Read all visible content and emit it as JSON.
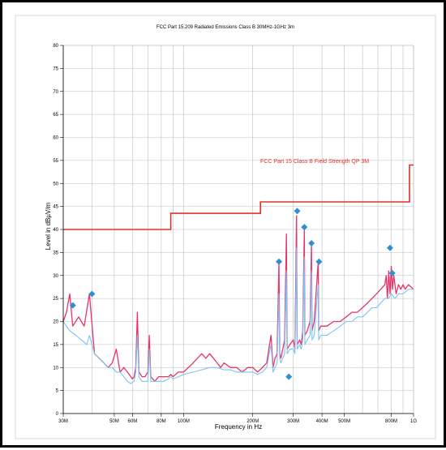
{
  "chart_data": {
    "type": "line",
    "title": "FCC Part 15.209 Radiated Emissions Class B 30MHz-1GHz 3m",
    "xlabel": "Frequency in Hz",
    "ylabel": "Level in dBµV/m",
    "x_scale": "log",
    "xlim": [
      30,
      1000
    ],
    "ylim": [
      0,
      80
    ],
    "grid": true,
    "x_ticks": [
      {
        "value": 30,
        "label": "30M"
      },
      {
        "value": 50,
        "label": "50M"
      },
      {
        "value": 60,
        "label": "60M"
      },
      {
        "value": 80,
        "label": "80M"
      },
      {
        "value": 100,
        "label": "100M"
      },
      {
        "value": 200,
        "label": "200M"
      },
      {
        "value": 300,
        "label": "300M"
      },
      {
        "value": 400,
        "label": "400M"
      },
      {
        "value": 500,
        "label": "500M"
      },
      {
        "value": 800,
        "label": "800M"
      },
      {
        "value": 1000,
        "label": "1G"
      }
    ],
    "x_minor_ticks": [
      40,
      70,
      90,
      600,
      700,
      900
    ],
    "y_ticks": [
      0,
      5,
      10,
      15,
      20,
      25,
      30,
      35,
      40,
      45,
      50,
      55,
      60,
      65,
      70,
      75,
      80
    ],
    "colors": {
      "limit": "#e03028",
      "peak": "#e8336a",
      "average": "#7cc3f2",
      "marker": "#2f8fd6",
      "grid": "#bdbdbd"
    },
    "limit_line": {
      "label": "FCC Part 15 Class B Field Strength QP 3M",
      "points": [
        [
          30,
          40
        ],
        [
          88,
          40
        ],
        [
          88,
          43.5
        ],
        [
          216,
          43.5
        ],
        [
          216,
          46
        ],
        [
          960,
          46
        ],
        [
          960,
          54
        ],
        [
          1000,
          54
        ]
      ]
    },
    "series": [
      {
        "role": "peak",
        "points": [
          [
            30,
            20
          ],
          [
            31,
            22
          ],
          [
            32,
            26
          ],
          [
            33,
            19
          ],
          [
            35,
            21
          ],
          [
            37,
            19
          ],
          [
            39,
            26
          ],
          [
            41,
            13
          ],
          [
            43,
            12
          ],
          [
            45,
            11
          ],
          [
            47,
            10
          ],
          [
            49,
            11
          ],
          [
            51,
            14
          ],
          [
            53,
            9
          ],
          [
            55,
            10
          ],
          [
            57,
            9
          ],
          [
            59,
            8
          ],
          [
            60,
            7.5
          ],
          [
            61,
            8
          ],
          [
            62,
            10
          ],
          [
            63,
            22
          ],
          [
            64,
            9
          ],
          [
            66,
            8
          ],
          [
            68,
            8
          ],
          [
            70,
            9
          ],
          [
            71,
            17
          ],
          [
            72,
            8
          ],
          [
            75,
            7
          ],
          [
            78,
            8
          ],
          [
            82,
            8
          ],
          [
            86,
            8
          ],
          [
            88,
            8.5
          ],
          [
            90,
            8
          ],
          [
            95,
            9
          ],
          [
            100,
            9
          ],
          [
            105,
            10
          ],
          [
            110,
            11
          ],
          [
            115,
            12
          ],
          [
            120,
            13
          ],
          [
            125,
            12
          ],
          [
            130,
            13
          ],
          [
            135,
            12
          ],
          [
            140,
            11
          ],
          [
            145,
            10
          ],
          [
            150,
            11
          ],
          [
            160,
            10
          ],
          [
            170,
            10
          ],
          [
            180,
            9
          ],
          [
            190,
            10
          ],
          [
            200,
            10
          ],
          [
            210,
            9
          ],
          [
            220,
            10
          ],
          [
            230,
            11
          ],
          [
            240,
            17
          ],
          [
            245,
            10
          ],
          [
            250,
            12
          ],
          [
            255,
            13
          ],
          [
            260,
            33
          ],
          [
            262,
            13
          ],
          [
            265,
            12
          ],
          [
            270,
            14
          ],
          [
            275,
            16
          ],
          [
            280,
            39
          ],
          [
            282,
            14
          ],
          [
            290,
            15
          ],
          [
            300,
            16
          ],
          [
            305,
            14
          ],
          [
            310,
            43
          ],
          [
            312,
            15
          ],
          [
            320,
            16
          ],
          [
            325,
            15
          ],
          [
            330,
            18
          ],
          [
            335,
            40
          ],
          [
            337,
            17
          ],
          [
            345,
            18
          ],
          [
            355,
            20
          ],
          [
            360,
            37
          ],
          [
            362,
            18
          ],
          [
            370,
            20
          ],
          [
            385,
            33
          ],
          [
            387,
            18
          ],
          [
            395,
            19
          ],
          [
            420,
            19
          ],
          [
            450,
            20
          ],
          [
            480,
            20
          ],
          [
            510,
            21
          ],
          [
            540,
            22
          ],
          [
            570,
            22
          ],
          [
            600,
            23
          ],
          [
            630,
            24
          ],
          [
            660,
            25
          ],
          [
            690,
            26
          ],
          [
            720,
            27
          ],
          [
            750,
            28
          ],
          [
            760,
            30
          ],
          [
            770,
            25
          ],
          [
            780,
            31
          ],
          [
            790,
            26
          ],
          [
            800,
            32
          ],
          [
            810,
            27
          ],
          [
            820,
            30
          ],
          [
            840,
            26
          ],
          [
            860,
            28
          ],
          [
            880,
            27
          ],
          [
            900,
            28
          ],
          [
            920,
            27
          ],
          [
            950,
            28
          ],
          [
            1000,
            27
          ]
        ]
      },
      {
        "role": "average",
        "points": [
          [
            30,
            20
          ],
          [
            32,
            18
          ],
          [
            34,
            17
          ],
          [
            36,
            16
          ],
          [
            38,
            15
          ],
          [
            39,
            17
          ],
          [
            41,
            13
          ],
          [
            43,
            12
          ],
          [
            45,
            11
          ],
          [
            47,
            10
          ],
          [
            49,
            10
          ],
          [
            51,
            9
          ],
          [
            53,
            9
          ],
          [
            55,
            8
          ],
          [
            57,
            7
          ],
          [
            59,
            6.5
          ],
          [
            61,
            7
          ],
          [
            62,
            9
          ],
          [
            63,
            17
          ],
          [
            64,
            8
          ],
          [
            66,
            7
          ],
          [
            68,
            7
          ],
          [
            70,
            7
          ],
          [
            71,
            14
          ],
          [
            72,
            7
          ],
          [
            75,
            7
          ],
          [
            78,
            7
          ],
          [
            82,
            7
          ],
          [
            86,
            7.5
          ],
          [
            88,
            8
          ],
          [
            90,
            7.5
          ],
          [
            95,
            8
          ],
          [
            100,
            8.5
          ],
          [
            110,
            9
          ],
          [
            120,
            9.5
          ],
          [
            130,
            10
          ],
          [
            140,
            10
          ],
          [
            150,
            9.5
          ],
          [
            160,
            9.5
          ],
          [
            170,
            9
          ],
          [
            180,
            9
          ],
          [
            190,
            9
          ],
          [
            200,
            9
          ],
          [
            210,
            8.5
          ],
          [
            220,
            9
          ],
          [
            230,
            10
          ],
          [
            240,
            15
          ],
          [
            245,
            9
          ],
          [
            250,
            10
          ],
          [
            255,
            11
          ],
          [
            260,
            26
          ],
          [
            262,
            12
          ],
          [
            265,
            11
          ],
          [
            270,
            12
          ],
          [
            275,
            13
          ],
          [
            280,
            31
          ],
          [
            282,
            13
          ],
          [
            290,
            14
          ],
          [
            300,
            14
          ],
          [
            305,
            13
          ],
          [
            310,
            36
          ],
          [
            312,
            14
          ],
          [
            320,
            15
          ],
          [
            325,
            14
          ],
          [
            330,
            16
          ],
          [
            335,
            34
          ],
          [
            337,
            15
          ],
          [
            345,
            16
          ],
          [
            355,
            17
          ],
          [
            360,
            31
          ],
          [
            362,
            16
          ],
          [
            370,
            17
          ],
          [
            385,
            28
          ],
          [
            387,
            16
          ],
          [
            395,
            17
          ],
          [
            420,
            17
          ],
          [
            450,
            18
          ],
          [
            480,
            19
          ],
          [
            510,
            20
          ],
          [
            540,
            20
          ],
          [
            570,
            21
          ],
          [
            600,
            21
          ],
          [
            630,
            22
          ],
          [
            660,
            23
          ],
          [
            690,
            23
          ],
          [
            720,
            24
          ],
          [
            750,
            25
          ],
          [
            780,
            25
          ],
          [
            800,
            26
          ],
          [
            830,
            25
          ],
          [
            860,
            26
          ],
          [
            900,
            26
          ],
          [
            950,
            27
          ],
          [
            1000,
            27
          ]
        ]
      }
    ],
    "markers": [
      {
        "x": 33,
        "y": 23.5
      },
      {
        "x": 40,
        "y": 26
      },
      {
        "x": 260,
        "y": 33
      },
      {
        "x": 287,
        "y": 8
      },
      {
        "x": 312,
        "y": 44
      },
      {
        "x": 335,
        "y": 40.5
      },
      {
        "x": 360,
        "y": 37
      },
      {
        "x": 388,
        "y": 33
      },
      {
        "x": 790,
        "y": 36
      },
      {
        "x": 808,
        "y": 30.5
      }
    ]
  }
}
